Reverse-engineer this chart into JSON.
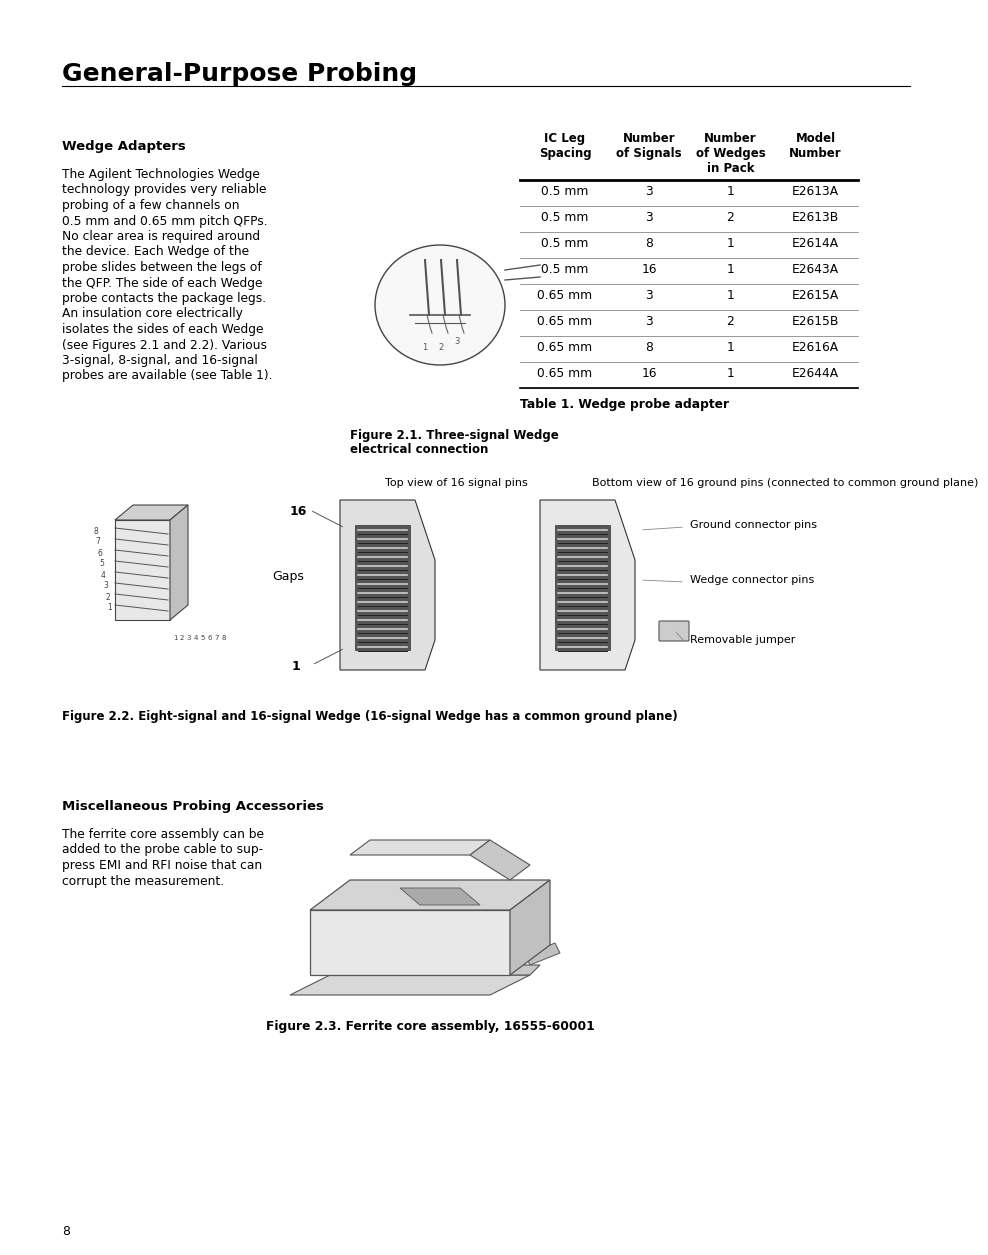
{
  "page_title": "General-Purpose Probing",
  "page_number": "8",
  "section1_heading": "Wedge Adapters",
  "section1_body": [
    "The Agilent Technologies Wedge",
    "technology provides very reliable",
    "probing of a few channels on",
    "0.5 mm and 0.65 mm pitch QFPs.",
    "No clear area is required around",
    "the device. Each Wedge of the",
    "probe slides between the legs of",
    "the QFP. The side of each Wedge",
    "probe contacts the package legs.",
    "An insulation core electrically",
    "isolates the sides of each Wedge",
    "(see Figures 2.1 and 2.2). Various",
    "3-signal, 8-signal, and 16-signal",
    "probes are available (see Table 1)."
  ],
  "fig21_caption_line1": "Figure 2.1. Three-signal Wedge",
  "fig21_caption_line2": "electrical connection",
  "table_headers": [
    "IC Leg\nSpacing",
    "Number\nof Signals",
    "Number\nof Wedges\nin Pack",
    "Model\nNumber"
  ],
  "table_rows": [
    [
      "0.5 mm",
      "3",
      "1",
      "E2613A"
    ],
    [
      "0.5 mm",
      "3",
      "2",
      "E2613B"
    ],
    [
      "0.5 mm",
      "8",
      "1",
      "E2614A"
    ],
    [
      "0.5 mm",
      "16",
      "1",
      "E2643A"
    ],
    [
      "0.65 mm",
      "3",
      "1",
      "E2615A"
    ],
    [
      "0.65 mm",
      "3",
      "2",
      "E2615B"
    ],
    [
      "0.65 mm",
      "8",
      "1",
      "E2616A"
    ],
    [
      "0.65 mm",
      "16",
      "1",
      "E2644A"
    ]
  ],
  "table_caption": "Table 1. Wedge probe adapter",
  "fig22_top_label_left": "Top view of 16 signal pins",
  "fig22_top_label_right": "Bottom view of 16 ground pins (connected to common ground plane)",
  "fig22_label_16": "16",
  "fig22_label_gaps": "Gaps",
  "fig22_label_1": "1",
  "fig22_labels_right": [
    "Ground connector pins",
    "Wedge connector pins",
    "Removable jumper"
  ],
  "fig22_caption": "Figure 2.2. Eight-signal and 16-signal Wedge (16-signal Wedge has a common ground plane)",
  "section2_heading": "Miscellaneous Probing Accessories",
  "section2_body": [
    "The ferrite core assembly can be",
    "added to the probe cable to sup-",
    "press EMI and RFI noise that can",
    "corrupt the measurement."
  ],
  "fig23_caption": "Figure 2.3. Ferrite core assembly, 16555-60001",
  "bg_color": "#ffffff",
  "text_color": "#000000",
  "title_color": "#000000"
}
